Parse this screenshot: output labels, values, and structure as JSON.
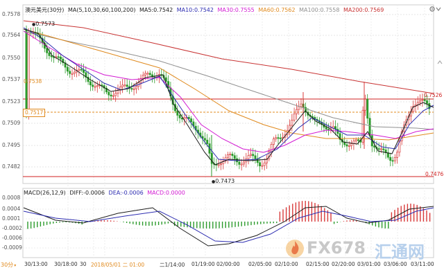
{
  "header": {
    "symbol": "澳元美元",
    "period": "(30分)",
    "ma_params": "MA(5,10,30,60,100,200)",
    "ma5": "MA5:0.7542",
    "ma10": "MA10:0.7542",
    "ma30": "MA30:0.7555",
    "ma60": "MA60:0.7562",
    "ma100": "MA100:0.7558",
    "ma200": "MA200:0.7569"
  },
  "price_axis": [
    "0.7578",
    "0.7564",
    "0.7550",
    "0.7537",
    "0.7523",
    "0.7509",
    "0.7495",
    "0.7482"
  ],
  "tags": {
    "high_label": "0.7573",
    "low_label": "0.7473",
    "left_level_1": "0.7538",
    "left_level_2": "0.7517",
    "right_level_1": "0.7526",
    "right_level_2": "0.7476"
  },
  "macd_header": {
    "params": "MACD(26,12,9)",
    "diff": "DIFF:-0.0006",
    "dea": "DEA:-0.0006",
    "macd": "MACD:0.0000"
  },
  "macd_axis": [
    "0.0008",
    "0.0004",
    "0.0001",
    "-0.0002",
    "-0.0006",
    "-0.0009"
  ],
  "period_selector": "30分",
  "time_axis": [
    "30/13:00",
    "30/18:00",
    "30",
    "2018/05/01 二 01:00",
    "二1/14:00",
    "01/19:00",
    "02/00:00",
    "02/05:00",
    "02/10:00",
    "02/15:00",
    "02/20:00",
    "03/01:00",
    "03/06:00",
    "03/11:00"
  ],
  "watermark": {
    "brand1": "FX678",
    "brand2": "汇通网"
  },
  "colors": {
    "ma5": "#1a1a1a",
    "ma10": "#2b2bb0",
    "ma30": "#d21ad2",
    "ma60": "#e08a1e",
    "ma100": "#909090",
    "ma200": "#c83232",
    "up_candle": "#d83a3a",
    "down_candle": "#2a9a2a",
    "level_line": "#d02020"
  },
  "icons": [
    "settings-icon",
    "up-arrow-icon",
    "down-arrow-icon"
  ]
}
